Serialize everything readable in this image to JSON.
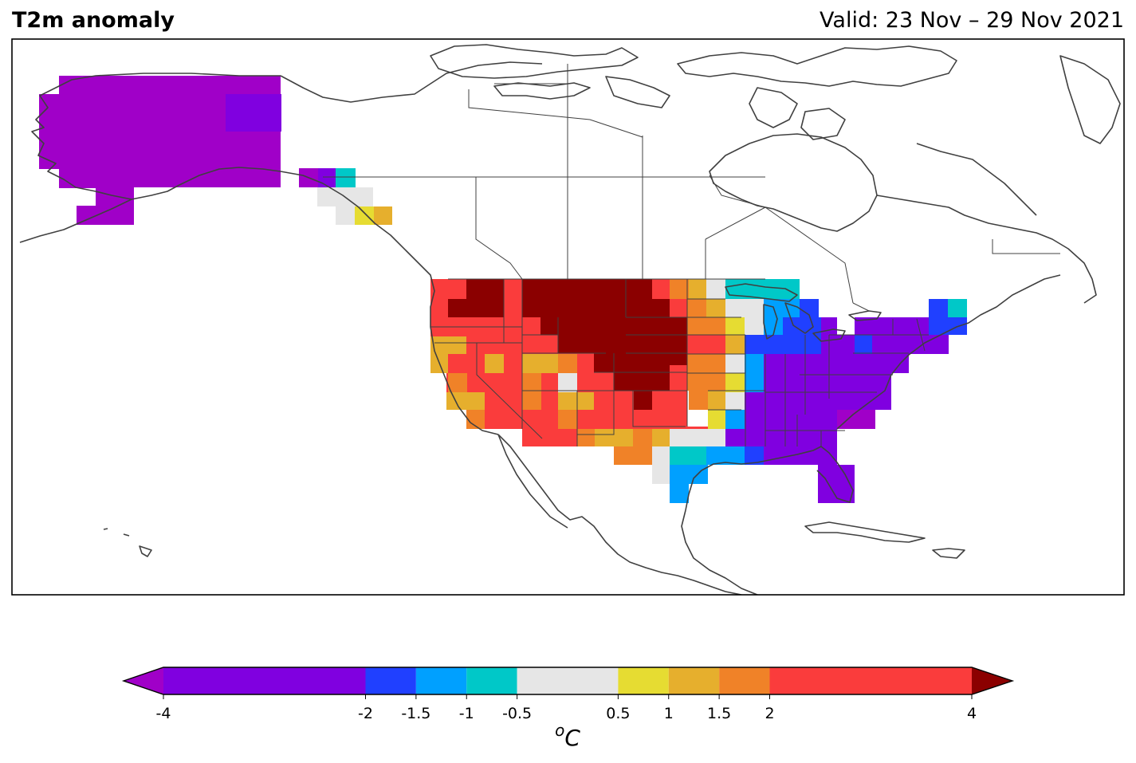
{
  "header": {
    "title": "T2m anomaly",
    "valid": "Valid: 23 Nov – 29 Nov 2021"
  },
  "colorbar": {
    "unit_sup": "o",
    "unit": "C",
    "ticks": [
      "-4",
      "-2",
      "-1.5",
      "-1",
      "-0.5",
      "0.5",
      "1",
      "1.5",
      "2",
      "4"
    ],
    "bins": [
      {
        "from": -4,
        "to": -2,
        "color": "#8000e0"
      },
      {
        "from": -2,
        "to": -1.5,
        "color": "#2040ff"
      },
      {
        "from": -1.5,
        "to": -1,
        "color": "#00a0ff"
      },
      {
        "from": -1,
        "to": -0.5,
        "color": "#00c8c8"
      },
      {
        "from": -0.5,
        "to": 0.5,
        "color": "#e6e6e6"
      },
      {
        "from": 0.5,
        "to": 1,
        "color": "#e6dc32"
      },
      {
        "from": 1,
        "to": 1.5,
        "color": "#e6af2d"
      },
      {
        "from": 1.5,
        "to": 2,
        "color": "#f08228"
      },
      {
        "from": 2,
        "to": 4,
        "color": "#fa3c3c"
      }
    ],
    "extend_low_color": "#a000c8",
    "extend_high_color": "#8b0000"
  }
}
